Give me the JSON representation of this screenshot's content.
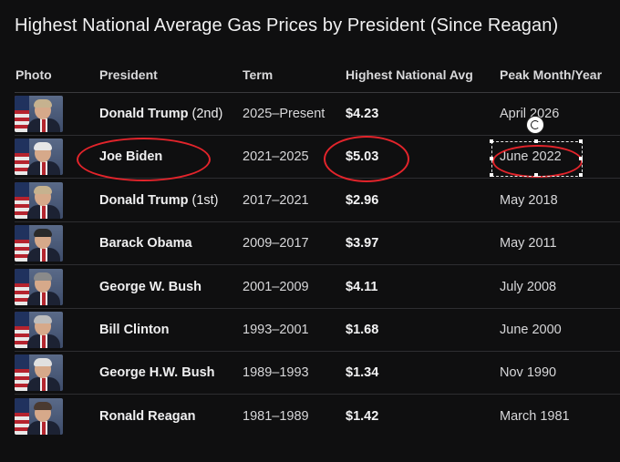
{
  "title": "Highest National Average Gas Prices by President (Since Reagan)",
  "columns": {
    "photo": "Photo",
    "president": "President",
    "term": "Term",
    "avg": "Highest National Avg",
    "peak": "Peak Month/Year"
  },
  "rows": [
    {
      "name": "Donald Trump",
      "suffix": "(2nd)",
      "term": "2025–Present",
      "avg": "$4.23",
      "peak": "April 2026"
    },
    {
      "name": "Joe Biden",
      "suffix": "",
      "term": "2021–2025",
      "avg": "$5.03",
      "peak": "June 2022"
    },
    {
      "name": "Donald Trump",
      "suffix": "(1st)",
      "term": "2017–2021",
      "avg": "$2.96",
      "peak": "May 2018"
    },
    {
      "name": "Barack Obama",
      "suffix": "",
      "term": "2009–2017",
      "avg": "$3.97",
      "peak": "May 2011"
    },
    {
      "name": "George W. Bush",
      "suffix": "",
      "term": "2001–2009",
      "avg": "$4.11",
      "peak": "July 2008"
    },
    {
      "name": "Bill Clinton",
      "suffix": "",
      "term": "1993–2001",
      "avg": "$1.68",
      "peak": "June 2000"
    },
    {
      "name": "George H.W. Bush",
      "suffix": "",
      "term": "1989–1993",
      "avg": "$1.34",
      "peak": "Nov 1990"
    },
    {
      "name": "Ronald Reagan",
      "suffix": "",
      "term": "1981–1989",
      "avg": "$1.42",
      "peak": "March 1981"
    }
  ],
  "annotation_color": "#e3242b",
  "icons": {
    "rotate": "rotate-handle-icon"
  }
}
